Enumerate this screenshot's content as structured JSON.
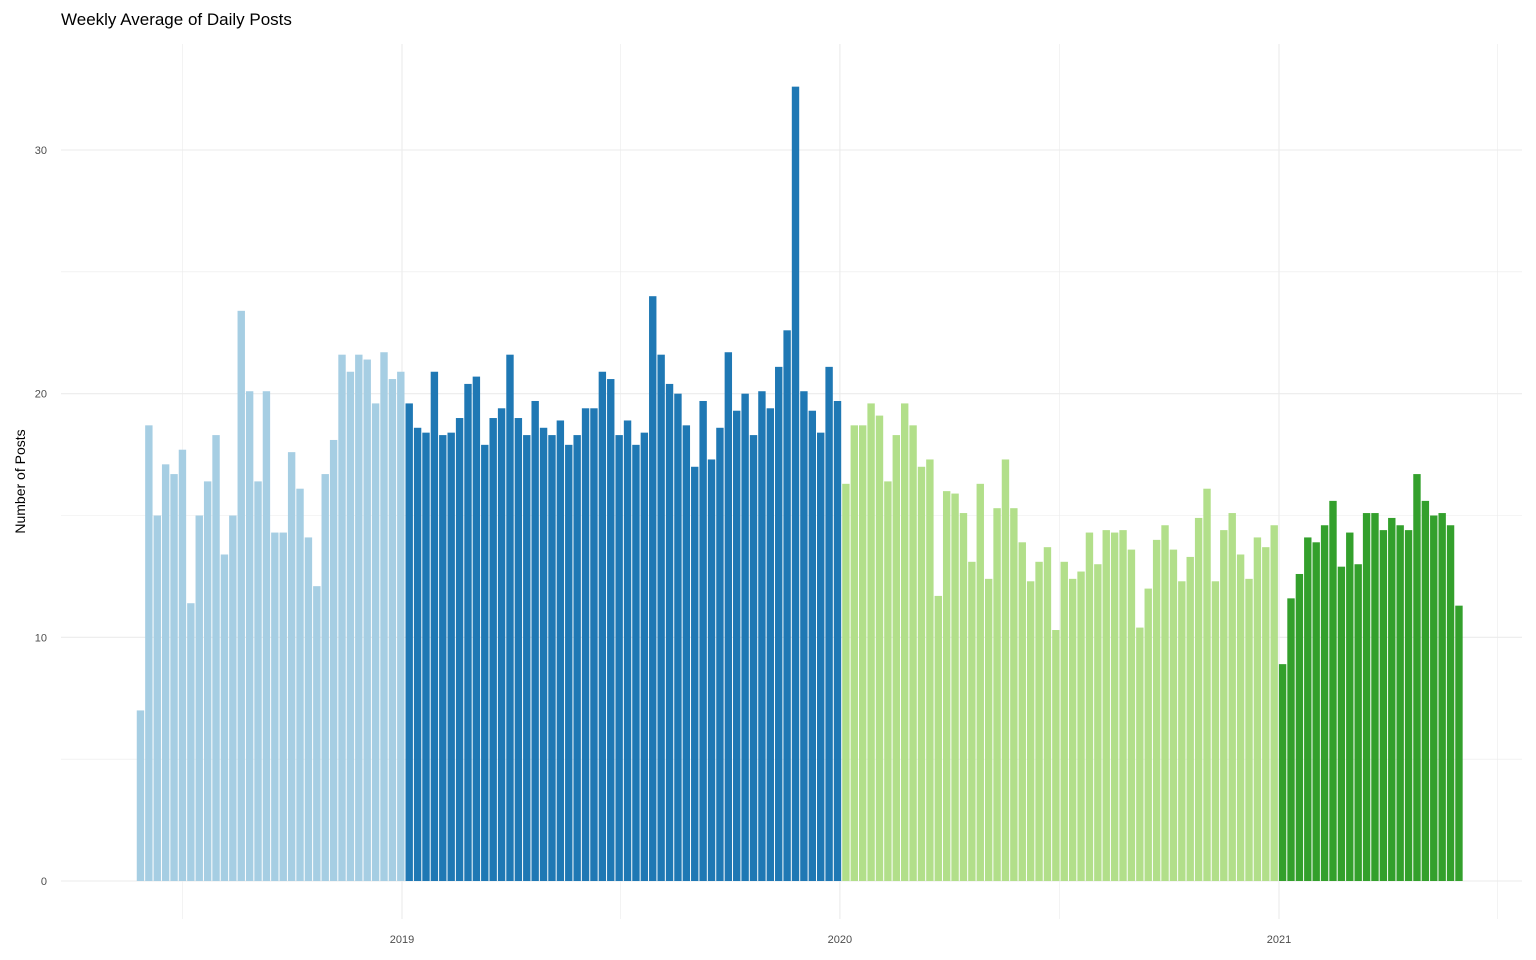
{
  "chart_data": {
    "type": "bar",
    "title": "Weekly Average of Daily Posts",
    "xlabel": "",
    "ylabel": "Number of Posts",
    "ylim": [
      0,
      32.5
    ],
    "yticks": [
      0,
      10,
      20,
      30
    ],
    "xlim": [
      "2018-04-20",
      "2021-07-10"
    ],
    "xticks": [
      {
        "date": "2019-01-01",
        "label": "2019"
      },
      {
        "date": "2020-01-01",
        "label": "2020"
      },
      {
        "date": "2021-01-01",
        "label": "2021"
      }
    ],
    "x_minor_ticks": [
      "2018-07-02",
      "2019-07-02",
      "2020-07-02",
      "2021-07-02"
    ],
    "grid": true,
    "legend": "none",
    "series": [
      {
        "year": 2018,
        "color": "#a6cee3",
        "x": [
          "2018-05-28",
          "2018-06-04",
          "2018-06-11",
          "2018-06-18",
          "2018-06-25",
          "2018-07-02",
          "2018-07-09",
          "2018-07-16",
          "2018-07-23",
          "2018-07-30",
          "2018-08-06",
          "2018-08-13",
          "2018-08-20",
          "2018-08-27",
          "2018-09-03",
          "2018-09-10",
          "2018-09-17",
          "2018-09-24",
          "2018-10-01",
          "2018-10-08",
          "2018-10-15",
          "2018-10-22",
          "2018-10-29",
          "2018-11-05",
          "2018-11-12",
          "2018-11-19",
          "2018-11-26",
          "2018-12-03",
          "2018-12-10",
          "2018-12-17",
          "2018-12-24",
          "2018-12-31"
        ],
        "values": [
          7.0,
          18.7,
          15.0,
          17.1,
          16.7,
          17.7,
          11.4,
          15.0,
          16.4,
          18.3,
          13.4,
          15.0,
          23.4,
          20.1,
          16.4,
          20.1,
          14.3,
          14.3,
          17.6,
          16.1,
          14.1,
          12.1,
          16.7,
          18.1,
          21.6,
          20.9,
          21.6,
          21.4,
          19.6,
          21.7,
          20.6,
          20.9
        ]
      },
      {
        "year": 2019,
        "color": "#1f78b4",
        "x": [
          "2019-01-07",
          "2019-01-14",
          "2019-01-21",
          "2019-01-28",
          "2019-02-04",
          "2019-02-11",
          "2019-02-18",
          "2019-02-25",
          "2019-03-04",
          "2019-03-11",
          "2019-03-18",
          "2019-03-25",
          "2019-04-01",
          "2019-04-08",
          "2019-04-15",
          "2019-04-22",
          "2019-04-29",
          "2019-05-06",
          "2019-05-13",
          "2019-05-20",
          "2019-05-27",
          "2019-06-03",
          "2019-06-10",
          "2019-06-17",
          "2019-06-24",
          "2019-07-01",
          "2019-07-08",
          "2019-07-15",
          "2019-07-22",
          "2019-07-29",
          "2019-08-05",
          "2019-08-12",
          "2019-08-19",
          "2019-08-26",
          "2019-09-02",
          "2019-09-09",
          "2019-09-16",
          "2019-09-23",
          "2019-09-30",
          "2019-10-07",
          "2019-10-14",
          "2019-10-21",
          "2019-10-28",
          "2019-11-04",
          "2019-11-11",
          "2019-11-18",
          "2019-11-25",
          "2019-12-02",
          "2019-12-09",
          "2019-12-16",
          "2019-12-23",
          "2019-12-30"
        ],
        "values": [
          19.6,
          18.6,
          18.4,
          20.9,
          18.3,
          18.4,
          19.0,
          20.4,
          20.7,
          17.9,
          19.0,
          19.4,
          21.6,
          19.0,
          18.3,
          19.7,
          18.6,
          18.3,
          18.9,
          17.9,
          18.3,
          19.4,
          19.4,
          20.9,
          20.6,
          18.3,
          18.9,
          17.9,
          18.4,
          24.0,
          21.6,
          20.4,
          20.0,
          18.7,
          17.0,
          19.7,
          17.3,
          18.6,
          21.7,
          19.3,
          20.0,
          18.3,
          20.1,
          19.4,
          21.1,
          22.6,
          32.6,
          20.1,
          19.3,
          18.4,
          21.1,
          19.7
        ]
      },
      {
        "year": 2020,
        "color": "#b2df8a",
        "x": [
          "2020-01-06",
          "2020-01-13",
          "2020-01-20",
          "2020-01-27",
          "2020-02-03",
          "2020-02-10",
          "2020-02-17",
          "2020-02-24",
          "2020-03-02",
          "2020-03-09",
          "2020-03-16",
          "2020-03-23",
          "2020-03-30",
          "2020-04-06",
          "2020-04-13",
          "2020-04-20",
          "2020-04-27",
          "2020-05-04",
          "2020-05-11",
          "2020-05-18",
          "2020-05-25",
          "2020-06-01",
          "2020-06-08",
          "2020-06-15",
          "2020-06-22",
          "2020-06-29",
          "2020-07-06",
          "2020-07-13",
          "2020-07-20",
          "2020-07-27",
          "2020-08-03",
          "2020-08-10",
          "2020-08-17",
          "2020-08-24",
          "2020-08-31",
          "2020-09-07",
          "2020-09-14",
          "2020-09-21",
          "2020-09-28",
          "2020-10-05",
          "2020-10-12",
          "2020-10-19",
          "2020-10-26",
          "2020-11-02",
          "2020-11-09",
          "2020-11-16",
          "2020-11-23",
          "2020-11-30",
          "2020-12-07",
          "2020-12-14",
          "2020-12-21",
          "2020-12-28"
        ],
        "values": [
          16.3,
          18.7,
          18.7,
          19.6,
          19.1,
          16.4,
          18.3,
          19.6,
          18.7,
          17.0,
          17.3,
          11.7,
          16.0,
          15.9,
          15.1,
          13.1,
          16.3,
          12.4,
          15.3,
          17.3,
          15.3,
          13.9,
          12.3,
          13.1,
          13.7,
          10.3,
          13.1,
          12.4,
          12.7,
          14.3,
          13.0,
          14.4,
          14.3,
          14.4,
          13.6,
          10.4,
          12.0,
          14.0,
          14.6,
          13.6,
          12.3,
          13.3,
          14.9,
          16.1,
          12.3,
          14.4,
          15.1,
          13.4,
          12.4,
          14.1,
          13.7,
          14.6
        ]
      },
      {
        "year": 2021,
        "color": "#33a02c",
        "x": [
          "2021-01-04",
          "2021-01-11",
          "2021-01-18",
          "2021-01-25",
          "2021-02-01",
          "2021-02-08",
          "2021-02-15",
          "2021-02-22",
          "2021-03-01",
          "2021-03-08",
          "2021-03-15",
          "2021-03-22",
          "2021-03-29",
          "2021-04-05",
          "2021-04-12",
          "2021-04-19",
          "2021-04-26",
          "2021-05-03",
          "2021-05-10",
          "2021-05-17",
          "2021-05-24",
          "2021-05-31"
        ],
        "values": [
          8.9,
          11.6,
          12.6,
          14.1,
          13.9,
          14.6,
          15.6,
          12.9,
          14.3,
          13.0,
          15.1,
          15.1,
          14.4,
          14.9,
          14.6,
          14.4,
          16.7,
          15.6,
          15.0,
          15.1,
          14.6,
          11.3
        ]
      }
    ]
  }
}
